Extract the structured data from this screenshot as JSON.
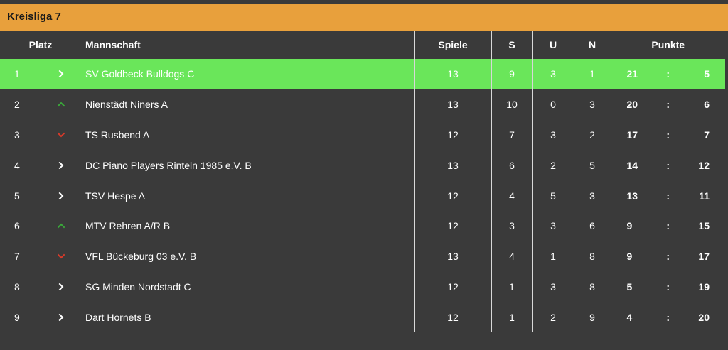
{
  "league": {
    "title": "Kreisliga 7"
  },
  "table": {
    "headers": {
      "rank": "Platz",
      "team": "Mannschaft",
      "games": "Spiele",
      "wins": "S",
      "draws": "U",
      "losses": "N",
      "points": "Punkte"
    },
    "trend_colors": {
      "up": "#3aa83a",
      "down": "#d83a2a",
      "same": "#ffffff"
    },
    "highlight_color": "#6ae65a",
    "rows": [
      {
        "rank": "1",
        "trend": "same",
        "team": "SV Goldbeck Bulldogs C",
        "games": "13",
        "wins": "9",
        "draws": "3",
        "losses": "1",
        "points_plus": "21",
        "points_sep": ":",
        "points_minus": "5",
        "highlight": true
      },
      {
        "rank": "2",
        "trend": "up",
        "team": "Nienstädt Niners A",
        "games": "13",
        "wins": "10",
        "draws": "0",
        "losses": "3",
        "points_plus": "20",
        "points_sep": ":",
        "points_minus": "6",
        "highlight": false
      },
      {
        "rank": "3",
        "trend": "down",
        "team": "TS Rusbend A",
        "games": "12",
        "wins": "7",
        "draws": "3",
        "losses": "2",
        "points_plus": "17",
        "points_sep": ":",
        "points_minus": "7",
        "highlight": false
      },
      {
        "rank": "4",
        "trend": "same",
        "team": "DC Piano Players Rinteln 1985 e.V. B",
        "games": "13",
        "wins": "6",
        "draws": "2",
        "losses": "5",
        "points_plus": "14",
        "points_sep": ":",
        "points_minus": "12",
        "highlight": false
      },
      {
        "rank": "5",
        "trend": "same",
        "team": "TSV Hespe A",
        "games": "12",
        "wins": "4",
        "draws": "5",
        "losses": "3",
        "points_plus": "13",
        "points_sep": ":",
        "points_minus": "11",
        "highlight": false
      },
      {
        "rank": "6",
        "trend": "up",
        "team": "MTV Rehren A/R B",
        "games": "12",
        "wins": "3",
        "draws": "3",
        "losses": "6",
        "points_plus": "9",
        "points_sep": ":",
        "points_minus": "15",
        "highlight": false
      },
      {
        "rank": "7",
        "trend": "down",
        "team": "VFL Bückeburg 03 e.V. B",
        "games": "13",
        "wins": "4",
        "draws": "1",
        "losses": "8",
        "points_plus": "9",
        "points_sep": ":",
        "points_minus": "17",
        "highlight": false
      },
      {
        "rank": "8",
        "trend": "same",
        "team": "SG Minden Nordstadt C",
        "games": "12",
        "wins": "1",
        "draws": "3",
        "losses": "8",
        "points_plus": "5",
        "points_sep": ":",
        "points_minus": "19",
        "highlight": false
      },
      {
        "rank": "9",
        "trend": "same",
        "team": "Dart Hornets B",
        "games": "12",
        "wins": "1",
        "draws": "2",
        "losses": "9",
        "points_plus": "4",
        "points_sep": ":",
        "points_minus": "20",
        "highlight": false
      }
    ]
  }
}
